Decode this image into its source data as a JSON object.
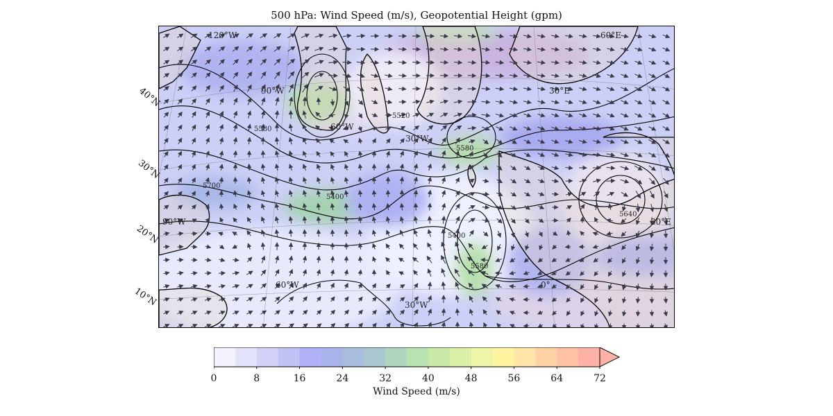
{
  "title": "500 hPa: Wind Speed (m/s), Geopotential Height (gpm)",
  "map": {
    "lat_labels": [
      "40°N",
      "30°N",
      "20°N",
      "10°N"
    ],
    "lon_labels_inside": [
      "120°W",
      "90°W",
      "60°W",
      "30°W",
      "0°",
      "30°E",
      "60°E",
      "90°W",
      "60°W",
      "30°W",
      "30°E"
    ],
    "contour_labels": [
      "5580",
      "5700",
      "5400",
      "5580",
      "5640",
      "5580",
      "5520",
      "5400"
    ],
    "land_color": "#e8d8c8",
    "ocean_color": "#ffffff"
  },
  "colorbar": {
    "label": "Wind Speed (m/s)",
    "ticks": [
      "0",
      "8",
      "16",
      "24",
      "32",
      "40",
      "48",
      "56",
      "64",
      "72"
    ],
    "colors": [
      "#f3f3ff",
      "#e2e2fb",
      "#d2d2f8",
      "#c2c2f7",
      "#b2b2fa",
      "#aab4ec",
      "#a9bdde",
      "#aac8cf",
      "#afd6c0",
      "#b8e2b0",
      "#c9e9a9",
      "#dcefa9",
      "#eef5a9",
      "#fff4a0",
      "#ffe4a7",
      "#ffd2a5",
      "#ffc2a2",
      "#ffb1a6"
    ],
    "extend_color": "#ffb1a6"
  }
}
